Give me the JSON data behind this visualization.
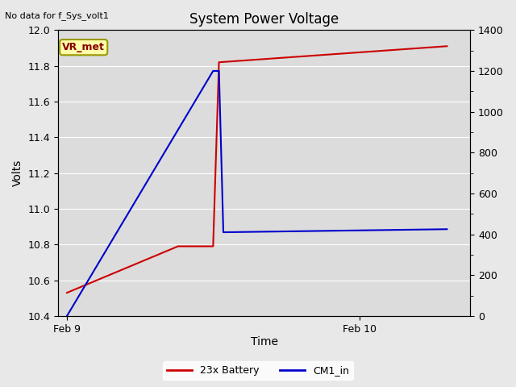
{
  "title": "System Power Voltage",
  "no_data_text": "No data for f_Sys_volt1",
  "xlabel": "Time",
  "ylabel_left": "Volts",
  "ylim_left": [
    10.4,
    12.0
  ],
  "ylim_right": [
    0,
    1400
  ],
  "fig_facecolor": "#e8e8e8",
  "plot_facecolor": "#dcdcdc",
  "vr_met": {
    "text": "VR_met",
    "facecolor": "#ffffaa",
    "edgecolor": "#999900",
    "textcolor": "#880000"
  },
  "red_line": {
    "label": "23x Battery",
    "color": "#cc0000",
    "x": [
      0.0,
      0.38,
      0.5,
      0.52,
      1.3
    ],
    "y": [
      10.53,
      10.79,
      10.79,
      11.82,
      11.91
    ]
  },
  "blue_line": {
    "label": "CM1_in",
    "color": "#0000cc",
    "x": [
      0.0,
      0.5,
      0.52,
      0.535,
      1.3
    ],
    "y": [
      0,
      1200,
      1200,
      410,
      425
    ]
  },
  "xlim": [
    -0.03,
    1.38
  ],
  "xticks": [
    0.0,
    1.0
  ],
  "xtick_labels": [
    "Feb 9",
    "Feb 10"
  ],
  "grid_color": "white",
  "grid_linewidth": 0.8
}
